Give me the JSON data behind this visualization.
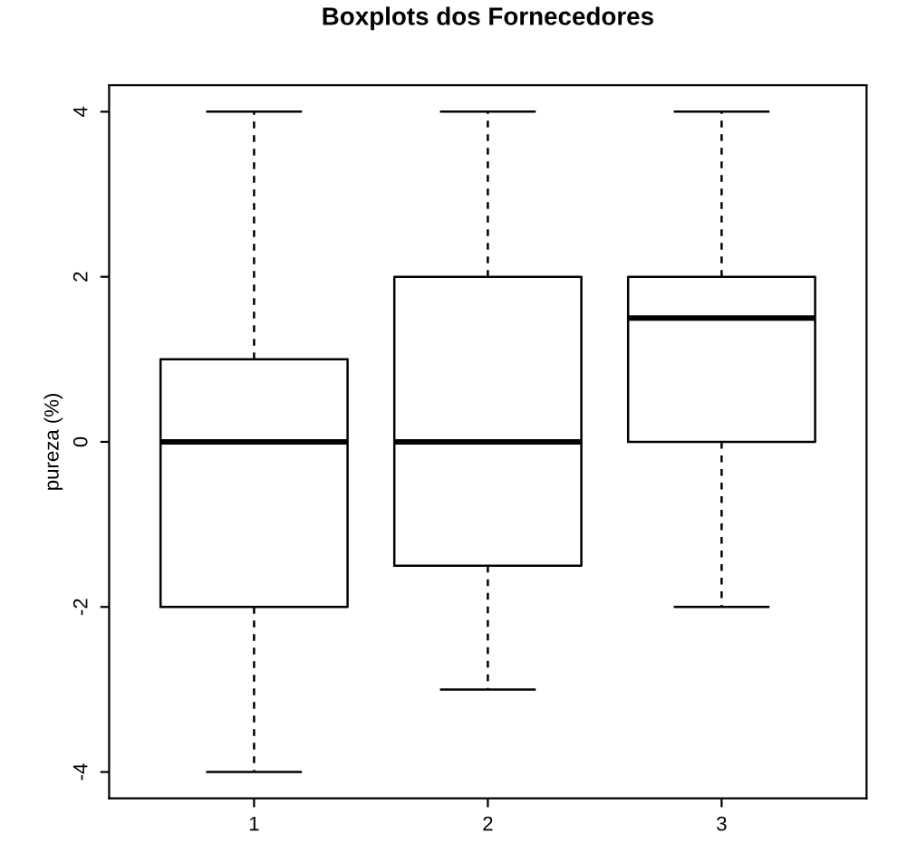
{
  "chart_data": {
    "type": "box",
    "title": "Boxplots dos Fornecedores",
    "ylabel": "pureza (%)",
    "categories": [
      "1",
      "2",
      "3"
    ],
    "boxes": [
      {
        "low": -4,
        "q1": -2,
        "median": 0,
        "q3": 1,
        "high": 4
      },
      {
        "low": -3,
        "q1": -1.5,
        "median": 0,
        "q3": 2,
        "high": 4
      },
      {
        "low": -2,
        "q1": 0,
        "median": 1.5,
        "q3": 2,
        "high": 4
      }
    ],
    "ylim": [
      -4.32,
      4.32
    ],
    "yticks": [
      -4,
      -2,
      0,
      2,
      4
    ],
    "grid": false
  }
}
